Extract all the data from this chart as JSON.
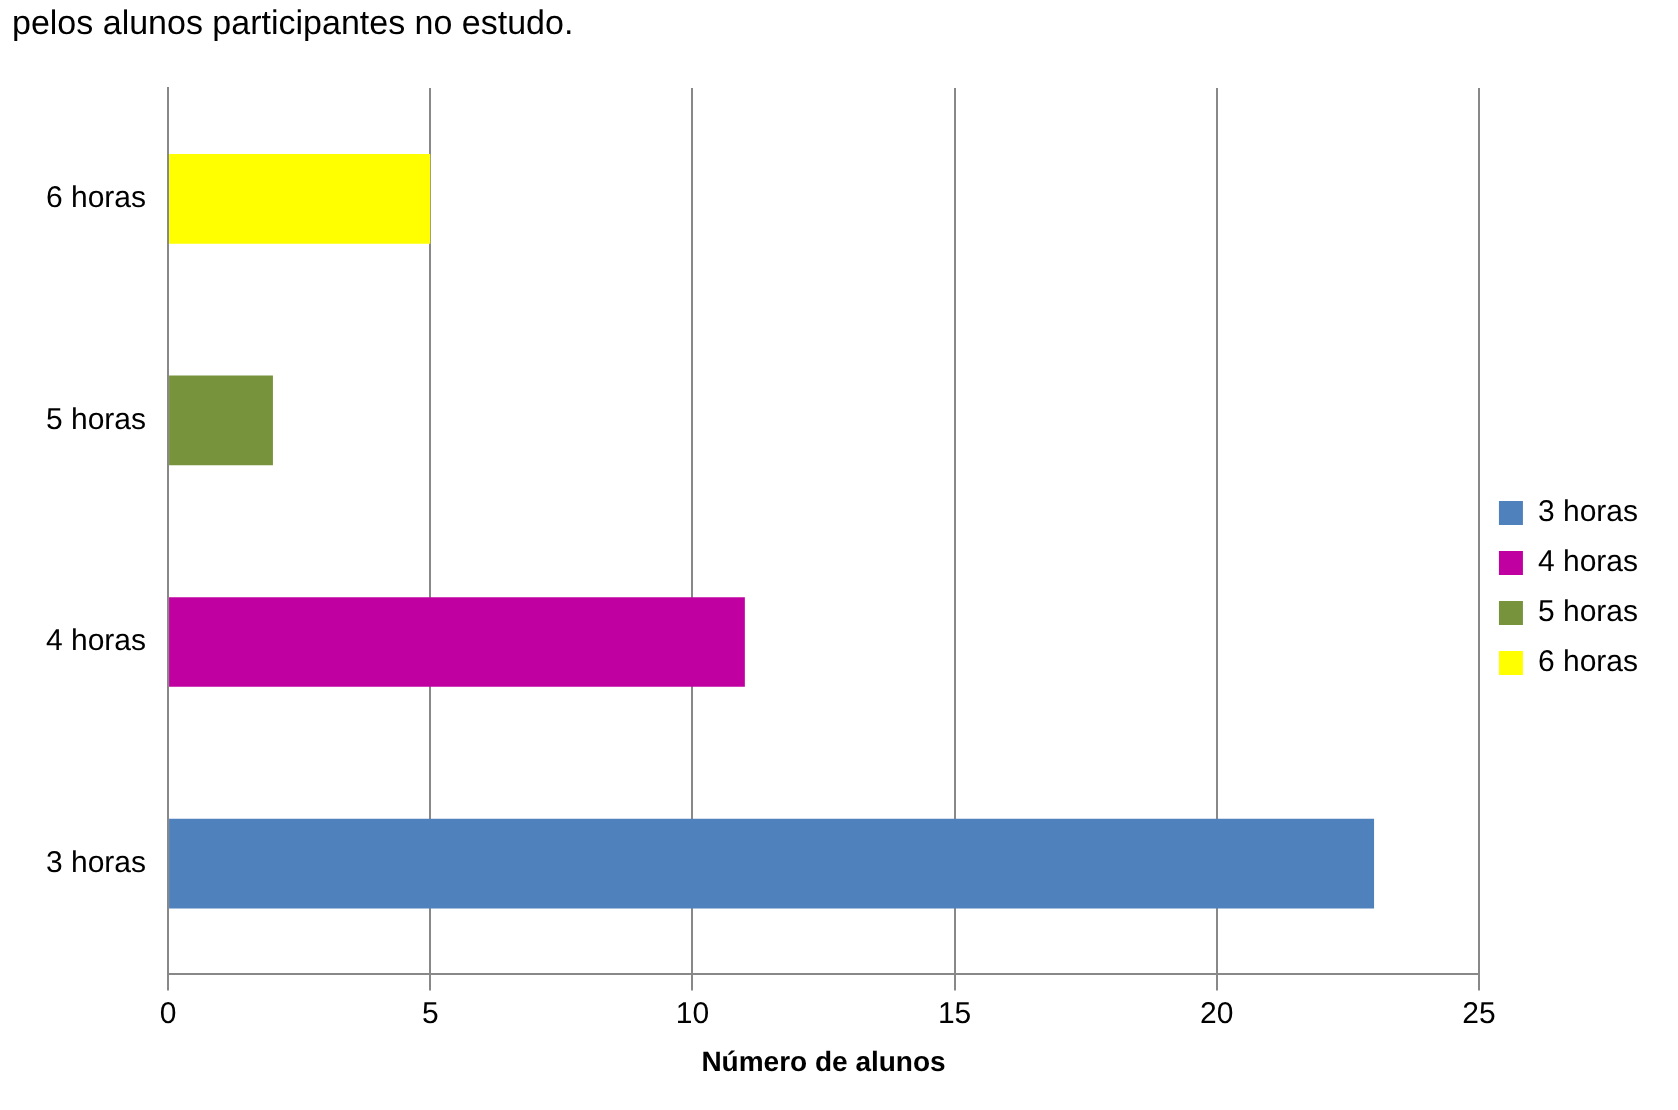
{
  "chart_data": {
    "type": "bar",
    "orientation": "horizontal",
    "stacked": true,
    "title": "pelos alunos participantes no estudo.",
    "xlabel": "Número de alunos",
    "categories": [
      "6 horas",
      "5 horas",
      "4 horas",
      "3 horas"
    ],
    "series": [
      {
        "name": "3 horas",
        "color": "#4f81bd",
        "values": [
          null,
          null,
          null,
          23
        ]
      },
      {
        "name": "4 horas",
        "color": "#c000a0",
        "values": [
          null,
          null,
          11,
          null
        ]
      },
      {
        "name": "5 horas",
        "color": "#77933c",
        "values": [
          null,
          2,
          null,
          null
        ]
      },
      {
        "name": "6 horas",
        "color": "#ffff00",
        "values": [
          5,
          null,
          null,
          null
        ]
      }
    ],
    "xlim": [
      0,
      25
    ],
    "xticks": [
      0,
      5,
      10,
      15,
      20,
      25
    ],
    "grid": "x",
    "legend": "right"
  }
}
